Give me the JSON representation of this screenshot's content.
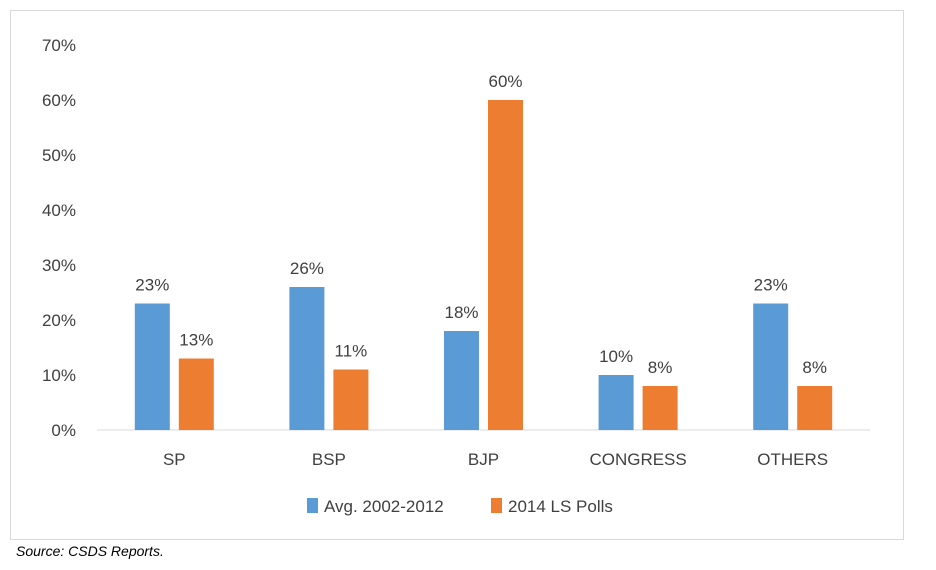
{
  "chart_data": {
    "type": "bar",
    "title": "",
    "xlabel": "",
    "ylabel": "",
    "categories": [
      "SP",
      "BSP",
      "BJP",
      "CONGRESS",
      "OTHERS"
    ],
    "series": [
      {
        "name": "Avg. 2002-2012",
        "color": "#5b9bd5",
        "values": [
          23,
          26,
          18,
          10,
          23
        ],
        "labels": [
          "23%",
          "26%",
          "18%",
          "10%",
          "23%"
        ]
      },
      {
        "name": "2014 LS Polls",
        "color": "#ed7d31",
        "values": [
          13,
          11,
          60,
          8,
          8
        ],
        "labels": [
          "13%",
          "11%",
          "60%",
          "8%",
          "8%"
        ]
      }
    ],
    "ylim": [
      0,
      70
    ],
    "yticks": [
      "0%",
      "10%",
      "20%",
      "30%",
      "40%",
      "50%",
      "60%",
      "70%"
    ],
    "grid": false,
    "legend_position": "bottom"
  },
  "source": "Source: CSDS Reports."
}
